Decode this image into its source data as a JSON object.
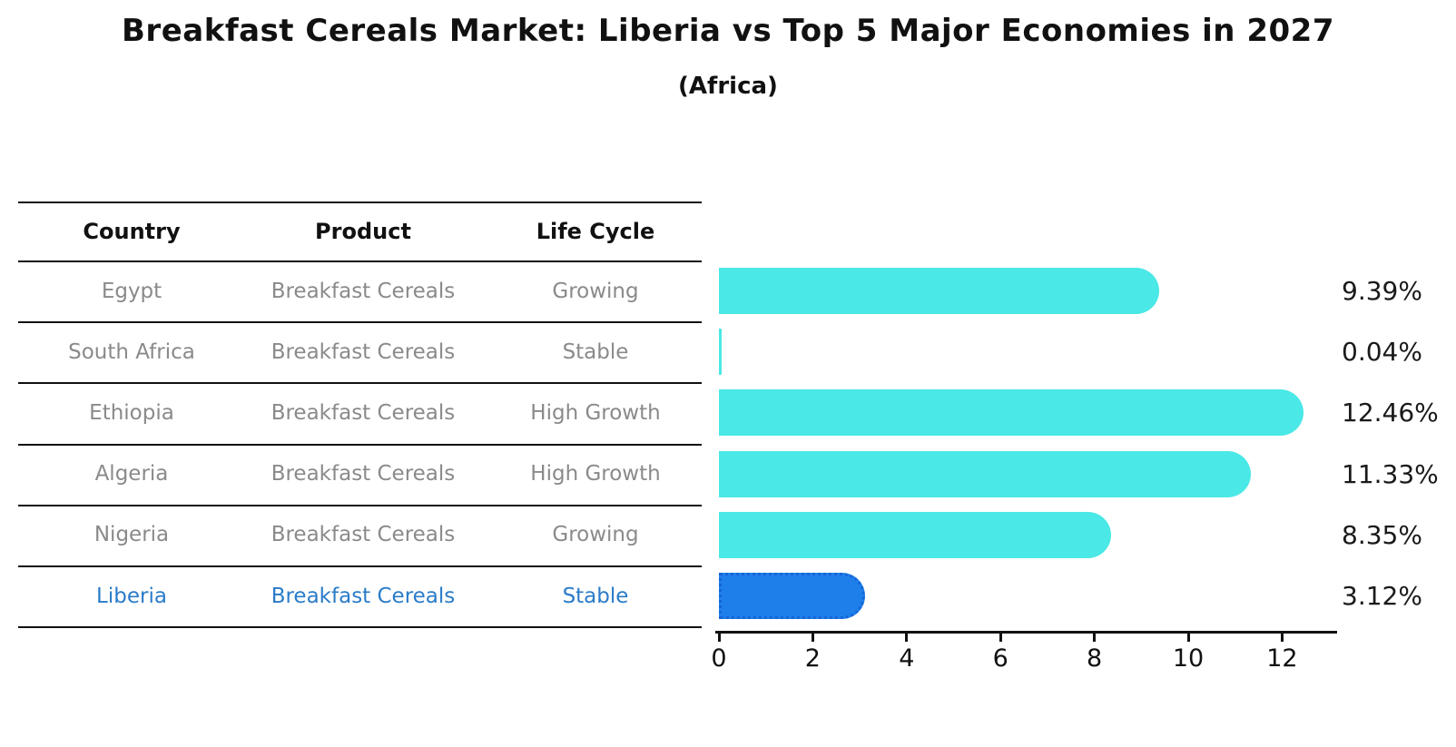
{
  "header": {
    "title": "Breakfast Cereals Market: Liberia vs Top 5 Major Economies in 2027",
    "subtitle": "(Africa)"
  },
  "colors": {
    "bar": "#4ae8e6",
    "highlight_bar": "#1f7fea",
    "highlight_bar_border": "#1565d8",
    "highlight_text": "#2a7bc8",
    "row_text": "#8a8a8a",
    "header_text": "#111111",
    "value_text": "#1a1a1a",
    "axis": "#111111",
    "background": "#ffffff"
  },
  "table": {
    "headers": [
      "Country",
      "Product",
      "Life Cycle"
    ],
    "rows": [
      {
        "country": "Egypt",
        "product": "Breakfast Cereals",
        "life_cycle": "Growing",
        "highlight": false
      },
      {
        "country": "South Africa",
        "product": "Breakfast Cereals",
        "life_cycle": "Stable",
        "highlight": false
      },
      {
        "country": "Ethiopia",
        "product": "Breakfast Cereals",
        "life_cycle": "High Growth",
        "highlight": false
      },
      {
        "country": "Algeria",
        "product": "Breakfast Cereals",
        "life_cycle": "High Growth",
        "highlight": false
      },
      {
        "country": "Nigeria",
        "product": "Breakfast Cereals",
        "life_cycle": "Growing",
        "highlight": false
      },
      {
        "country": "Liberia",
        "product": "Breakfast Cereals",
        "life_cycle": "Stable",
        "highlight": true
      }
    ]
  },
  "chart_data": {
    "type": "bar",
    "orientation": "horizontal",
    "title": "Breakfast Cereals Market: Liberia vs Top 5 Major Economies in 2027",
    "subtitle": "(Africa)",
    "categories": [
      "Egypt",
      "South Africa",
      "Ethiopia",
      "Algeria",
      "Nigeria",
      "Liberia"
    ],
    "values": [
      9.39,
      0.04,
      12.46,
      11.33,
      8.35,
      3.12
    ],
    "value_labels": [
      "9.39%",
      "0.04%",
      "12.46%",
      "11.33%",
      "8.35%",
      "3.12%"
    ],
    "unit": "%",
    "highlight_index": 5,
    "highlight_category": "Liberia",
    "x_ticks": [
      0,
      2,
      4,
      6,
      8,
      10,
      12
    ],
    "xlim": [
      0,
      13.2
    ],
    "grid": false,
    "legend": false,
    "bar_style": "rounded-right-cap",
    "highlight_border_style": "dotted"
  }
}
